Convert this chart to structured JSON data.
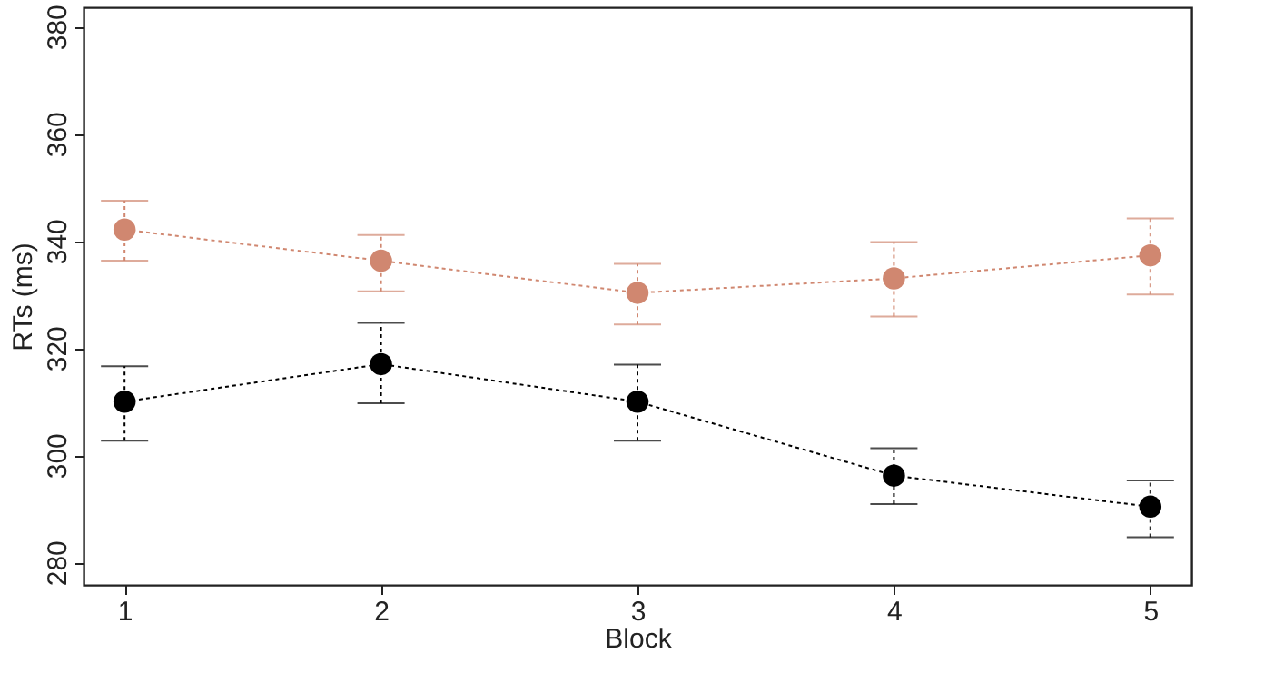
{
  "chart_data": {
    "type": "line",
    "xlabel": "Block",
    "ylabel": "RTs (ms)",
    "x": [
      1,
      2,
      3,
      4,
      5
    ],
    "series": [
      {
        "color": "#d08770",
        "values": [
          342.1,
          336.3,
          330.3,
          333.0,
          337.3
        ],
        "errors": [
          [
            336.3,
            347.5
          ],
          [
            330.6,
            341.1
          ],
          [
            324.4,
            335.7
          ],
          [
            325.9,
            339.8
          ],
          [
            330.0,
            344.2
          ]
        ]
      },
      {
        "color": "#000000",
        "values": [
          310.0,
          317.0,
          310.0,
          296.2,
          290.4
        ],
        "errors": [
          [
            302.7,
            316.6
          ],
          [
            309.7,
            324.7
          ],
          [
            302.7,
            316.9
          ],
          [
            290.9,
            301.3
          ],
          [
            284.7,
            295.3
          ]
        ]
      }
    ],
    "xlim": [
      0.84,
      5.16
    ],
    "xticks": [
      1,
      2,
      3,
      4,
      5
    ],
    "ylim": [
      275.8,
      383.6
    ],
    "yticks": [
      280,
      300,
      320,
      340,
      360,
      380
    ],
    "grid": false,
    "marker": "circle",
    "line_style": "dotted"
  }
}
